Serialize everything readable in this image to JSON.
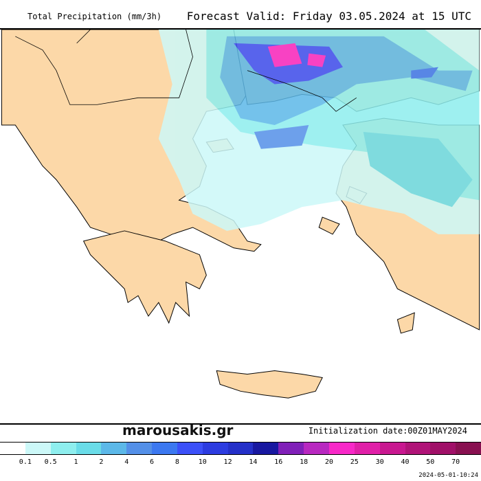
{
  "header": {
    "title": "Total Precipitation (mm/3h)",
    "valid": "Forecast Valid:  Friday 03.05.2024 at 15 UTC"
  },
  "footer": {
    "brand": "marousakis.gr",
    "init": "Initialization date:00Z01MAY2024",
    "timestamp": "2024-05-01-10:24"
  },
  "legend": {
    "colors": [
      "#ffffff",
      "#ccf8f8",
      "#8eeeee",
      "#6adce8",
      "#5cb8e8",
      "#5490e8",
      "#3c78f0",
      "#3c50f8",
      "#2c3ce0",
      "#2430c8",
      "#1818a0",
      "#8020b8",
      "#b828c0",
      "#f828c8",
      "#e020a8",
      "#c81890",
      "#b01478",
      "#a01068",
      "#881050"
    ],
    "labels": [
      "0.1",
      "0.5",
      "1",
      "2",
      "4",
      "6",
      "8",
      "10",
      "12",
      "14",
      "16",
      "18",
      "20",
      "25",
      "30",
      "40",
      "50",
      "70"
    ]
  },
  "colors": {
    "land": "#fcd8a8",
    "sea": "#ffffff"
  }
}
